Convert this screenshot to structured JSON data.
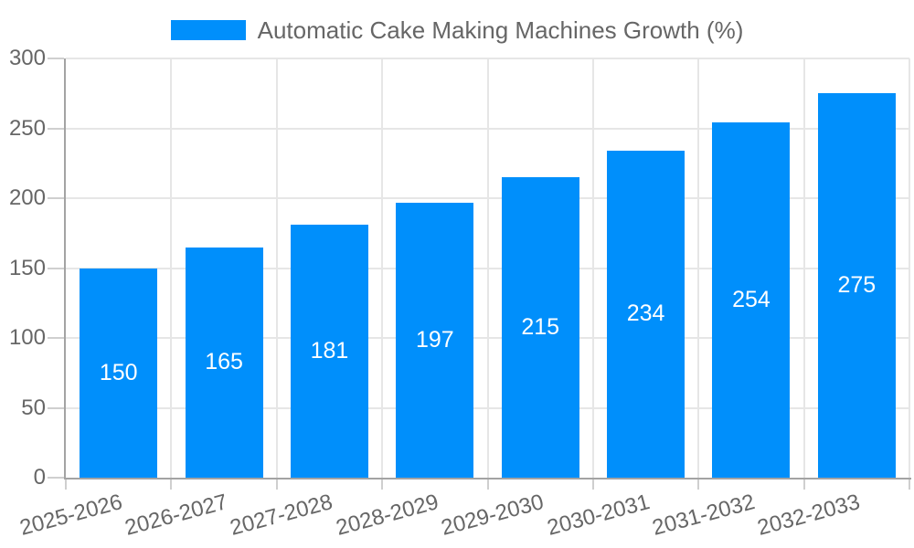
{
  "chart_data": {
    "type": "bar",
    "title": "Automatic Cake Making Machines Growth (%)",
    "categories": [
      "2025-2026",
      "2026-2027",
      "2027-2028",
      "2028-2029",
      "2029-2030",
      "2030-2031",
      "2031-2032",
      "2032-2033"
    ],
    "values": [
      150,
      165,
      181,
      197,
      215,
      234,
      254,
      275
    ],
    "xlabel": "",
    "ylabel": "",
    "ylim": [
      0,
      300
    ],
    "ytick_step": 50,
    "yticks": [
      0,
      50,
      100,
      150,
      200,
      250,
      300
    ],
    "grid": true,
    "legend_position": "top",
    "x_label_rotation_deg": -15,
    "colors": {
      "bar": "#008FFB",
      "bar_label": "#FFFFFF",
      "grid": "#E6E6E6",
      "axis": "#A3A3A3",
      "tick": "#CFCFCF",
      "text": "#666666",
      "background": "#FFFFFF"
    }
  }
}
